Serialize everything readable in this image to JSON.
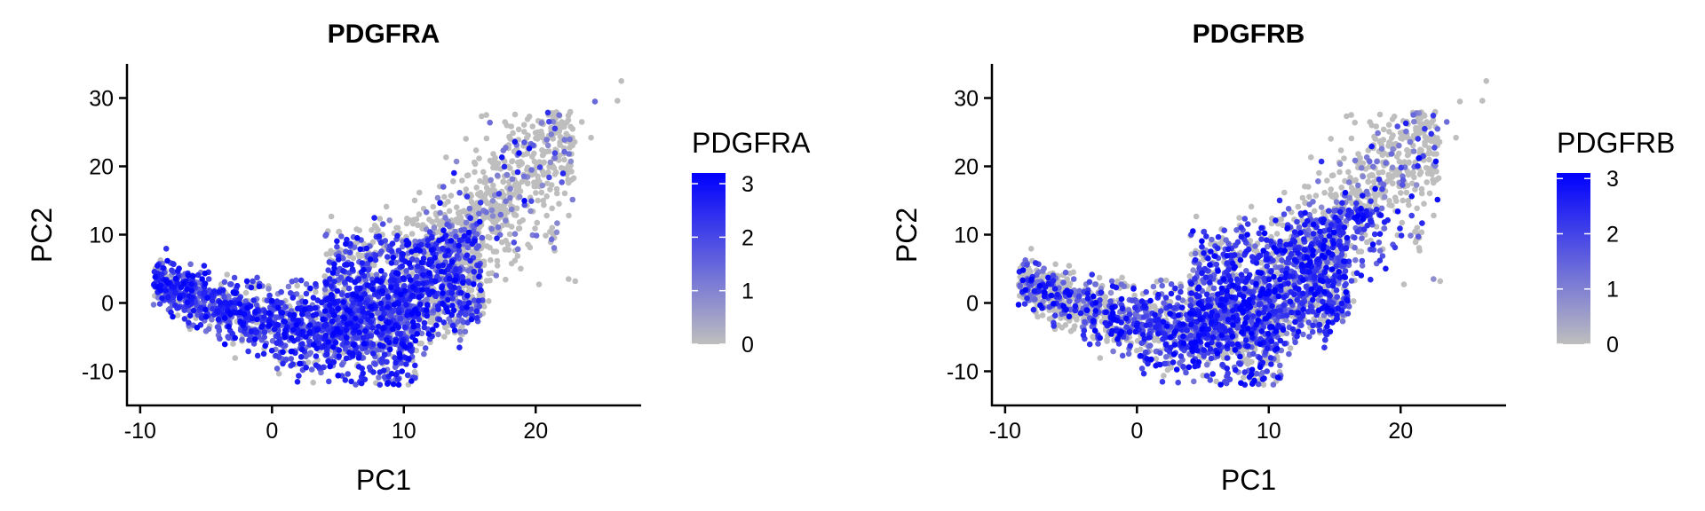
{
  "chart_data": [
    {
      "type": "scatter",
      "title": "PDGFRA",
      "xlabel": "PC1",
      "ylabel": "PC2",
      "xlim": [
        -11,
        28
      ],
      "ylim": [
        -15,
        35
      ],
      "xticks": [
        -10,
        0,
        10,
        20
      ],
      "yticks": [
        -10,
        0,
        10,
        20,
        30
      ],
      "grid": false,
      "legend": {
        "title": "PDGFRA",
        "placement": "right",
        "min": 0,
        "max": 3.2,
        "ticks": [
          0,
          1,
          2,
          3
        ],
        "color_low": "#bebebe",
        "color_high": "#0000ff"
      },
      "highlight_region": "left-lower",
      "point_color": "#bebebe"
    },
    {
      "type": "scatter",
      "title": "PDGFRB",
      "xlabel": "PC1",
      "ylabel": "PC2",
      "xlim": [
        -11,
        28
      ],
      "ylim": [
        -15,
        35
      ],
      "xticks": [
        -10,
        0,
        10,
        20
      ],
      "yticks": [
        -10,
        0,
        10,
        20,
        30
      ],
      "grid": false,
      "legend": {
        "title": "PDGFRB",
        "placement": "right",
        "min": 0,
        "max": 3.1,
        "ticks": [
          0,
          1,
          2,
          3
        ],
        "color_low": "#bebebe",
        "color_high": "#0000ff"
      },
      "highlight_region": "middle-lower",
      "point_color": "#bebebe"
    }
  ]
}
